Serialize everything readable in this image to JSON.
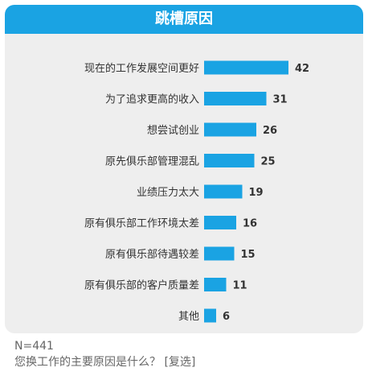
{
  "title": "跳槽原因",
  "footer": {
    "n": "N=441",
    "question": "您换工作的主要原因是什么？ [复选]"
  },
  "colors": {
    "bar": "#1aa3e3",
    "header": "#1aa3e3",
    "card": "#eeeeee"
  },
  "chart_data": {
    "type": "bar",
    "orientation": "horizontal",
    "title": "跳槽原因",
    "categories": [
      "现在的工作发展空间更好",
      "为了追求更高的收入",
      "想尝试创业",
      "原先俱乐部管理混乱",
      "业绩压力太大",
      "原有俱乐部工作环境太差",
      "原有俱乐部待遇较差",
      "原有俱乐部的客户质量差",
      "其他"
    ],
    "values": [
      42,
      31,
      26,
      25,
      19,
      16,
      15,
      11,
      6
    ],
    "xlim": [
      0,
      42
    ],
    "grid": false,
    "legend": false
  }
}
